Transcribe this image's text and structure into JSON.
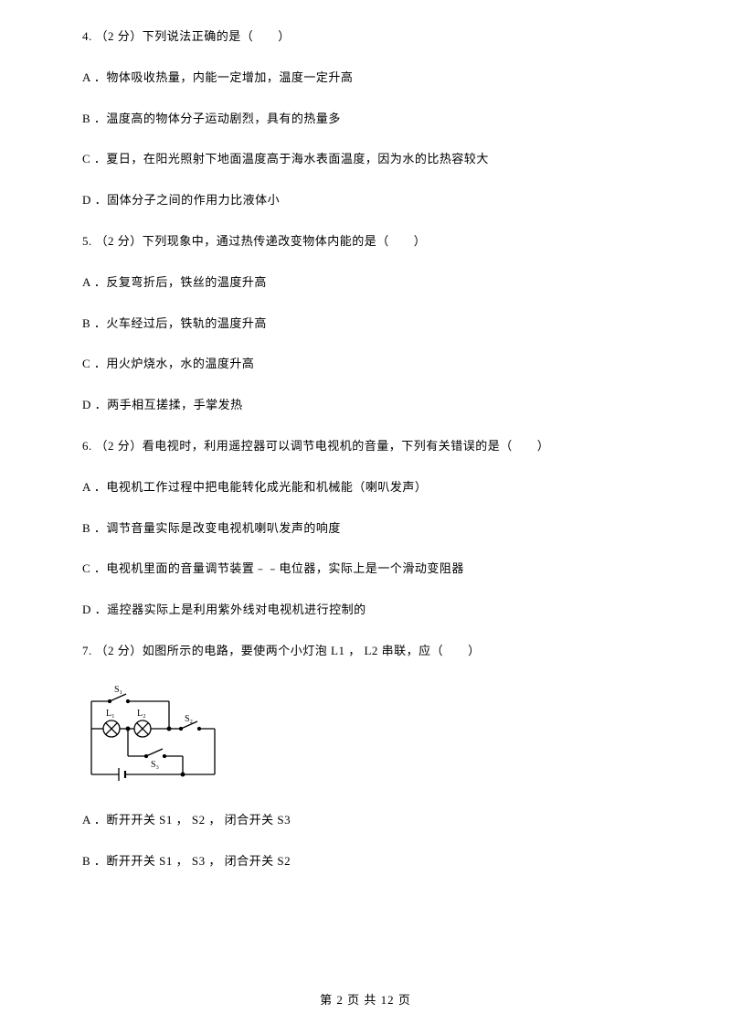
{
  "q4": {
    "stem": "4. （2 分）下列说法正确的是（　　）",
    "optA": "A ．物体吸收热量，内能一定增加，温度一定升高",
    "optB": "B ．温度高的物体分子运动剧烈，具有的热量多",
    "optC": "C ．夏日，在阳光照射下地面温度高于海水表面温度，因为水的比热容较大",
    "optD": "D ．固体分子之间的作用力比液体小"
  },
  "q5": {
    "stem": "5. （2 分）下列现象中，通过热传递改变物体内能的是（　　）",
    "optA": "A ．反复弯折后，铁丝的温度升高",
    "optB": "B ．火车经过后，铁轨的温度升高",
    "optC": "C ．用火炉烧水，水的温度升高",
    "optD": "D ．两手相互搓揉，手掌发热"
  },
  "q6": {
    "stem": "6. （2 分）看电视时，利用遥控器可以调节电视机的音量，下列有关错误的是（　　）",
    "optA": "A ．电视机工作过程中把电能转化成光能和机械能（喇叭发声）",
    "optB": "B ．调节音量实际是改变电视机喇叭发声的响度",
    "optC": "C ．电视机里面的音量调节装置﹣﹣电位器，实际上是一个滑动变阻器",
    "optD": "D ．遥控器实际上是利用紫外线对电视机进行控制的"
  },
  "q7": {
    "stem": "7. （2 分）如图所示的电路，要使两个小灯泡 L1 ， L2 串联，应（　　）",
    "optA": "A ．断开开关 S1 ， S2 ， 闭合开关 S3",
    "optB": "B ．断开开关 S1 ， S3 ， 闭合开关 S2"
  },
  "circuit": {
    "labels": {
      "s1": "S₁",
      "s2": "S₂",
      "s3": "S₃",
      "l1": "L₁",
      "l2": "L₂"
    },
    "styling": {
      "width": 165,
      "height": 120,
      "stroke_color": "#000000",
      "stroke_width": 1.3,
      "label_fontsize": 10,
      "bulb_radius": 9
    }
  },
  "footer": {
    "text": "第 2 页 共 12 页"
  }
}
